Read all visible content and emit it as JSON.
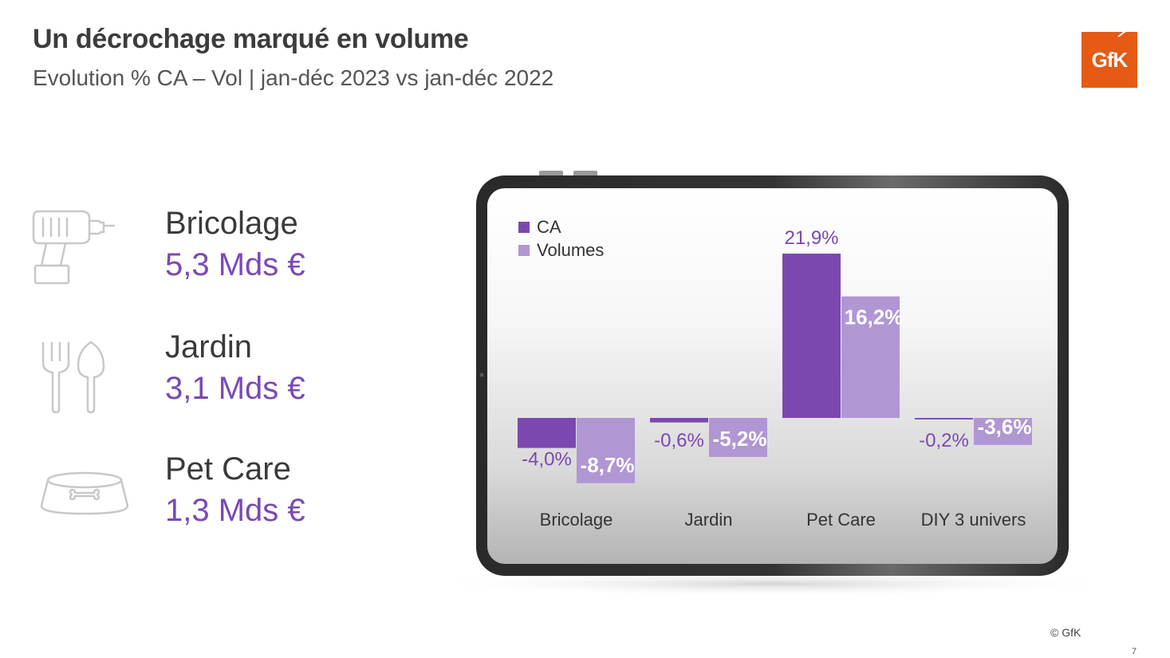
{
  "header": {
    "title": "Un décrochage marqué en volume",
    "subtitle": "Evolution % CA – Vol | jan-déc 2023 vs jan-déc 2022"
  },
  "logo": {
    "text": "GfK",
    "color": "#e55a14"
  },
  "categories": [
    {
      "icon": "drill-icon",
      "name": "Bricolage",
      "value": "5,3 Mds €"
    },
    {
      "icon": "garden-tools-icon",
      "name": "Jardin",
      "value": "3,1 Mds €"
    },
    {
      "icon": "pet-bowl-icon",
      "name": "Pet Care",
      "value": "1,3 Mds €"
    }
  ],
  "chart_data": {
    "type": "bar",
    "categories": [
      "Bricolage",
      "Jardin",
      "Pet Care",
      "DIY 3 univers"
    ],
    "series": [
      {
        "name": "CA",
        "color": "#7b48b0",
        "values": [
          -4.0,
          -0.6,
          21.9,
          -0.2
        ],
        "labels": [
          "-4,0%",
          "-0,6%",
          "21,9%",
          "-0,2%"
        ]
      },
      {
        "name": "Volumes",
        "color": "#b196d4",
        "values": [
          -8.7,
          -5.2,
          16.2,
          -3.6
        ],
        "labels": [
          "-8,7%",
          "-5,2%",
          "16,2%",
          "-3,6%"
        ]
      }
    ],
    "legend": "top-left",
    "grid": false
  },
  "footer": {
    "copyright": "© GfK",
    "page": "7"
  }
}
